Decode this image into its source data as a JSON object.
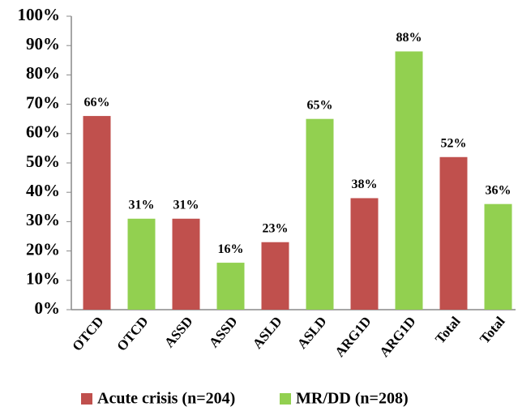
{
  "chart_data": {
    "type": "bar",
    "categories": [
      "OTCD",
      "OTCD",
      "ASSD",
      "ASSD",
      "ASLD",
      "ASLD",
      "ARG1D",
      "ARG1D",
      "Total",
      "Total"
    ],
    "series": [
      {
        "name": "Acute crisis (n=204)",
        "color": "#c0504d",
        "values": [
          66,
          null,
          31,
          null,
          23,
          null,
          38,
          null,
          52,
          null
        ],
        "value_labels": [
          "66%",
          null,
          "31%",
          null,
          "23%",
          null,
          "38%",
          null,
          "52%",
          null
        ]
      },
      {
        "name": "MR/DD (n=208)",
        "color": "#92d050",
        "values": [
          null,
          31,
          null,
          16,
          null,
          65,
          null,
          88,
          null,
          36
        ],
        "value_labels": [
          null,
          "31%",
          null,
          "16%",
          null,
          "65%",
          null,
          "88%",
          null,
          "36%"
        ]
      }
    ],
    "ylim": [
      0,
      100
    ],
    "yticks": [
      {
        "value": 0,
        "label": "0%"
      },
      {
        "value": 10,
        "label": "10%"
      },
      {
        "value": 20,
        "label": "20%"
      },
      {
        "value": 30,
        "label": "30%"
      },
      {
        "value": 40,
        "label": "40%"
      },
      {
        "value": 50,
        "label": "50%"
      },
      {
        "value": 60,
        "label": "60%"
      },
      {
        "value": 70,
        "label": "70%"
      },
      {
        "value": 80,
        "label": "80%"
      },
      {
        "value": 90,
        "label": "90%"
      },
      {
        "value": 100,
        "label": "100%"
      }
    ],
    "grid": false,
    "legend": "bottom"
  }
}
